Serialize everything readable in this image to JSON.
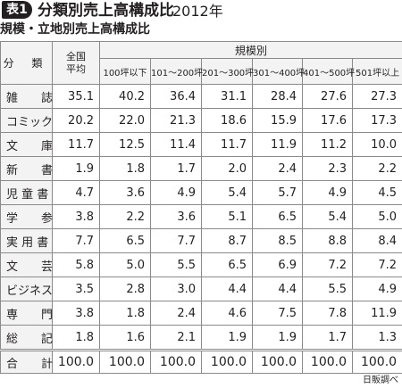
{
  "header": {
    "badge": "表1",
    "title": "分類別売上高構成比",
    "year": "2012年",
    "subtitle": "規模・立地別売上高構成比"
  },
  "table": {
    "category_header": "分 類",
    "national_header_line1": "全国",
    "national_header_line2": "平均",
    "group_header": "規模別",
    "size_headers": [
      "100坪以下",
      "101〜200坪",
      "201〜300坪",
      "301〜400坪",
      "401〜500坪",
      "501坪以上"
    ],
    "rows": [
      {
        "category": "雑　　誌",
        "values": [
          "35.1",
          "40.2",
          "36.4",
          "31.1",
          "28.4",
          "27.6",
          "27.3"
        ]
      },
      {
        "category": "コミック",
        "values": [
          "20.2",
          "22.0",
          "21.3",
          "18.6",
          "15.9",
          "17.6",
          "17.3"
        ]
      },
      {
        "category": "文　　庫",
        "values": [
          "11.7",
          "12.5",
          "11.4",
          "11.7",
          "11.9",
          "11.2",
          "10.0"
        ]
      },
      {
        "category": "新　　書",
        "values": [
          "1.9",
          "1.8",
          "1.7",
          "2.0",
          "2.4",
          "2.3",
          "2.2"
        ]
      },
      {
        "category": "児 童 書",
        "values": [
          "4.7",
          "3.6",
          "4.9",
          "5.4",
          "5.7",
          "4.9",
          "4.5"
        ]
      },
      {
        "category": "学　　参",
        "values": [
          "3.8",
          "2.2",
          "3.6",
          "5.1",
          "6.5",
          "5.4",
          "5.0"
        ]
      },
      {
        "category": "実 用 書",
        "values": [
          "7.7",
          "6.5",
          "7.7",
          "8.7",
          "8.5",
          "8.8",
          "8.4"
        ]
      },
      {
        "category": "文　　芸",
        "values": [
          "5.8",
          "5.0",
          "5.5",
          "6.5",
          "6.9",
          "7.2",
          "7.2"
        ]
      },
      {
        "category": "ビジネス",
        "values": [
          "3.5",
          "2.8",
          "3.0",
          "4.4",
          "4.4",
          "5.5",
          "4.9"
        ]
      },
      {
        "category": "専　　門",
        "values": [
          "3.8",
          "1.8",
          "2.4",
          "4.6",
          "7.5",
          "7.8",
          "11.9"
        ]
      },
      {
        "category": "総　　記",
        "values": [
          "1.8",
          "1.6",
          "2.1",
          "1.9",
          "1.9",
          "1.7",
          "1.3"
        ]
      }
    ],
    "total": {
      "category": "合　　計",
      "values": [
        "100.0",
        "100.0",
        "100.0",
        "100.0",
        "100.0",
        "100.0",
        "100.0"
      ]
    }
  },
  "source": "日販調べ"
}
